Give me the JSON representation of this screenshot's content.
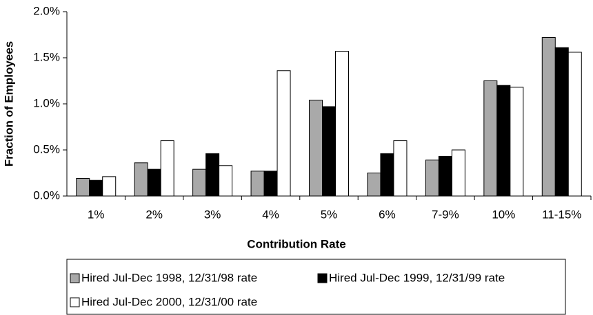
{
  "chart_data": {
    "type": "bar",
    "x_label": "Contribution Rate",
    "y_label": "Fraction of Employees",
    "categories": [
      "1%",
      "2%",
      "3%",
      "4%",
      "5%",
      "6%",
      "7-9%",
      "10%",
      "11-15%"
    ],
    "series": [
      {
        "name": "Hired Jul-Dec 1998, 12/31/98 rate",
        "color": "#a9a9a9",
        "values": [
          0.19,
          0.36,
          0.29,
          0.27,
          1.04,
          0.25,
          0.39,
          1.25,
          1.72
        ]
      },
      {
        "name": "Hired Jul-Dec 1999, 12/31/99 rate",
        "color": "#000000",
        "values": [
          0.17,
          0.29,
          0.46,
          0.27,
          0.97,
          0.46,
          0.43,
          1.2,
          1.61
        ]
      },
      {
        "name": "Hired Jul-Dec 2000, 12/31/00 rate",
        "color": "#ffffff",
        "values": [
          0.21,
          0.6,
          0.33,
          1.36,
          1.57,
          0.6,
          0.5,
          1.18,
          1.56
        ]
      }
    ],
    "ylim": [
      0,
      2
    ],
    "yticks": [
      {
        "value": 0,
        "label": "0.0%"
      },
      {
        "value": 0.5,
        "label": "0.5%"
      },
      {
        "value": 1,
        "label": "1.0%"
      },
      {
        "value": 1.5,
        "label": "1.5%"
      },
      {
        "value": 2,
        "label": "2.0%"
      }
    ],
    "grid": false
  }
}
